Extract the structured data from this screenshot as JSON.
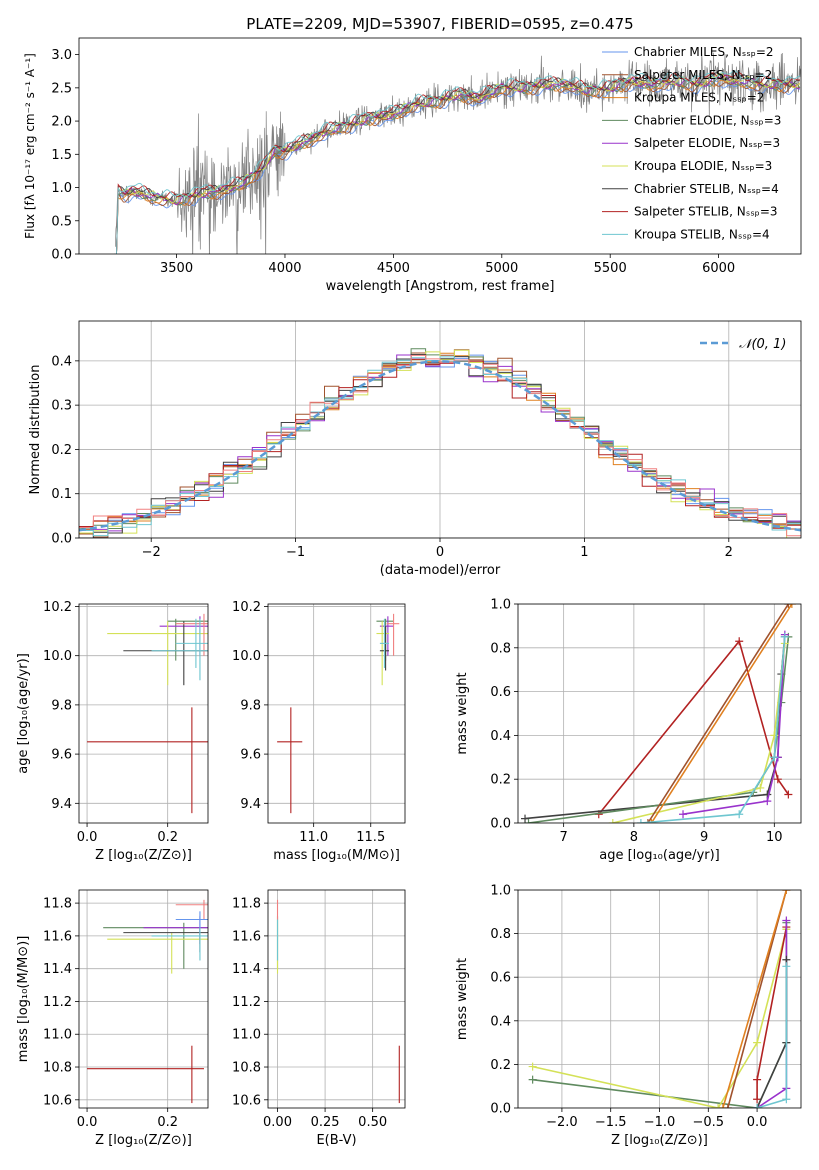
{
  "chart_data": [
    {
      "type": "line",
      "id": "spectrum",
      "title": "PLATE=2209, MJD=53907, FIBERID=0595, z=0.475",
      "xlabel": "wavelength [Angstrom, rest frame]",
      "ylabel": "Flux [fλ 10⁻¹⁷ erg cm⁻² s⁻¹ A⁻¹]",
      "xlim": [
        3050,
        6380
      ],
      "ylim": [
        0,
        3.25
      ],
      "xticks": [
        "3500",
        "4000",
        "4500",
        "5000",
        "5500",
        "6000"
      ],
      "yticks": [
        "0.0",
        "0.5",
        "1.0",
        "1.5",
        "2.0",
        "2.5",
        "3.0"
      ],
      "grid": false,
      "legend_position": "top-right",
      "data_color": "#808080",
      "model_x": [
        3215,
        3230,
        3260,
        3300,
        3400,
        3500,
        3600,
        3700,
        3800,
        3900,
        3950,
        4000,
        4100,
        4200,
        4300,
        4400,
        4500,
        4600,
        4700,
        4800,
        4900,
        5000,
        5100,
        5200,
        5300,
        5400,
        5500,
        5600,
        5700,
        5800,
        5900,
        6000,
        6100,
        6200
      ],
      "model_y": [
        0.0,
        0.95,
        0.9,
        0.95,
        0.85,
        0.8,
        0.9,
        0.95,
        1.05,
        1.3,
        1.55,
        1.55,
        1.7,
        1.85,
        1.95,
        2.05,
        2.1,
        2.25,
        2.3,
        2.4,
        2.35,
        2.5,
        2.5,
        2.55,
        2.55,
        2.45,
        2.5,
        2.6,
        2.55,
        2.6,
        2.55,
        2.65,
        2.6,
        2.55
      ],
      "series": [
        {
          "name": "Chabrier MILES, Nₛₛₚ=2",
          "color": "#6495ed"
        },
        {
          "name": "Salpeter MILES, Nₛₛₚ=2",
          "color": "#a0522d"
        },
        {
          "name": "Kroupa MILES, Nₛₛₚ=2",
          "color": "#e08020"
        },
        {
          "name": "Chabrier ELODIE, Nₛₛₚ=3",
          "color": "#5f8a5f"
        },
        {
          "name": "Salpeter ELODIE, Nₛₛₚ=3",
          "color": "#9932cc"
        },
        {
          "name": "Kroupa ELODIE, Nₛₛₚ=3",
          "color": "#d4e157"
        },
        {
          "name": "Chabrier STELIB, Nₛₛₚ=4",
          "color": "#404040"
        },
        {
          "name": "Salpeter STELIB, Nₛₛₚ=3",
          "color": "#b22222"
        },
        {
          "name": "Kroupa STELIB, Nₛₛₚ=4",
          "color": "#6ec6d0"
        }
      ]
    },
    {
      "type": "line",
      "id": "residuals",
      "xlabel": "(data-model)/error",
      "ylabel": "Normed distribution",
      "xlim": [
        -2.5,
        2.5
      ],
      "ylim": [
        0,
        0.49
      ],
      "xticks": [
        "−2",
        "−1",
        "0",
        "1",
        "2"
      ],
      "yticks": [
        "0.0",
        "0.1",
        "0.2",
        "0.3",
        "0.4"
      ],
      "grid": true,
      "legend_position": "top-right",
      "reference": {
        "name": "𝒩(0, 1)",
        "mean": 0,
        "sigma": 1,
        "color": "#5b9bd5"
      },
      "bin_width": 0.1,
      "hist_colors": [
        "#6495ed",
        "#a0522d",
        "#e08020",
        "#5f8a5f",
        "#9932cc",
        "#d4e157",
        "#404040",
        "#b22222",
        "#6ec6d0",
        "#f08080"
      ]
    },
    {
      "type": "scatter",
      "id": "age-vs-z",
      "xlabel": "Z [log₁₀(Z/Z⊙)]",
      "ylabel": "age  [log₁₀(age/yr)]",
      "xlim": [
        -0.02,
        0.3
      ],
      "ylim": [
        9.32,
        10.21
      ],
      "xticks": [
        "0.0",
        "0.2"
      ],
      "yticks": [
        "9.4",
        "9.6",
        "9.8",
        "10.0",
        "10.2"
      ],
      "grid": true,
      "points": [
        {
          "x": 0.22,
          "y": 10.14,
          "xerr": [
            0.2,
            0.3
          ],
          "yerr": [
            9.98,
            10.15
          ],
          "color": "#5f8a5f"
        },
        {
          "x": 0.28,
          "y": 10.12,
          "xerr": [
            0.18,
            0.3
          ],
          "yerr": [
            10.0,
            10.16
          ],
          "color": "#9932cc"
        },
        {
          "x": 0.2,
          "y": 10.09,
          "xerr": [
            0.05,
            0.3
          ],
          "yerr": [
            9.88,
            10.14
          ],
          "color": "#d4e157"
        },
        {
          "x": 0.24,
          "y": 10.02,
          "xerr": [
            0.09,
            0.3
          ],
          "yerr": [
            9.88,
            10.14
          ],
          "color": "#404040"
        },
        {
          "x": 0.29,
          "y": 10.13,
          "xerr": [
            0.22,
            0.3
          ],
          "yerr": [
            10.0,
            10.17
          ],
          "color": "#f08080"
        },
        {
          "x": 0.27,
          "y": 10.05,
          "xerr": [
            0.22,
            0.3
          ],
          "yerr": [
            9.95,
            10.15
          ],
          "color": "#6ec6d0"
        },
        {
          "x": 0.28,
          "y": 10.02,
          "xerr": [
            0.16,
            0.3
          ],
          "yerr": [
            9.9,
            10.15
          ],
          "color": "#6ec6d0"
        },
        {
          "x": 0.26,
          "y": 9.65,
          "xerr": [
            0.0,
            0.3
          ],
          "yerr": [
            9.36,
            9.79
          ],
          "color": "#b22222"
        }
      ]
    },
    {
      "type": "scatter",
      "id": "age-vs-mass",
      "xlabel": "mass [log₁₀(M/M⊙)]",
      "ylabel": "",
      "xlim": [
        10.6,
        11.8
      ],
      "ylim": [
        9.32,
        10.21
      ],
      "xticks": [
        "11.0",
        "11.5"
      ],
      "yticks": [
        "9.4",
        "9.6",
        "9.8",
        "10.0",
        "10.2"
      ],
      "grid": true,
      "points": [
        {
          "x": 11.63,
          "y": 10.14,
          "xerr": [
            11.55,
            11.7
          ],
          "yerr": [
            9.98,
            10.15
          ],
          "color": "#5f8a5f"
        },
        {
          "x": 11.65,
          "y": 10.12,
          "xerr": [
            11.58,
            11.7
          ],
          "yerr": [
            10.0,
            10.16
          ],
          "color": "#9932cc"
        },
        {
          "x": 11.6,
          "y": 10.09,
          "xerr": [
            11.55,
            11.66
          ],
          "yerr": [
            9.88,
            10.14
          ],
          "color": "#d4e157"
        },
        {
          "x": 11.63,
          "y": 10.02,
          "xerr": [
            11.58,
            11.66
          ],
          "yerr": [
            9.94,
            10.12
          ],
          "color": "#404040"
        },
        {
          "x": 11.7,
          "y": 10.13,
          "xerr": [
            11.64,
            11.75
          ],
          "yerr": [
            10.0,
            10.17
          ],
          "color": "#f08080"
        },
        {
          "x": 11.62,
          "y": 10.05,
          "xerr": [
            11.58,
            11.66
          ],
          "yerr": [
            9.95,
            10.15
          ],
          "color": "#6ec6d0"
        },
        {
          "x": 10.8,
          "y": 9.65,
          "xerr": [
            10.68,
            10.9
          ],
          "yerr": [
            9.36,
            9.79
          ],
          "color": "#b22222"
        }
      ]
    },
    {
      "type": "line",
      "id": "weight-vs-age",
      "xlabel": "age  [log₁₀(age/yr)]",
      "ylabel": "mass weight",
      "xlim": [
        6.35,
        10.38
      ],
      "ylim": [
        0,
        1
      ],
      "xticks": [
        "7",
        "8",
        "9",
        "10"
      ],
      "yticks": [
        "0.0",
        "0.2",
        "0.4",
        "0.6",
        "0.8",
        "1.0"
      ],
      "grid": true,
      "series": [
        {
          "color": "#b22222",
          "x": [
            10.2,
            10.05,
            9.5,
            7.5
          ],
          "y": [
            0.13,
            0.2,
            0.83,
            0.04
          ]
        },
        {
          "color": "#404040",
          "x": [
            6.45,
            9.9,
            10.05,
            10.1,
            10.15
          ],
          "y": [
            0.02,
            0.13,
            0.3,
            0.68,
            0.85
          ]
        },
        {
          "color": "#5f8a5f",
          "x": [
            6.5,
            9.7,
            10.0,
            10.1,
            10.2
          ],
          "y": [
            0.0,
            0.14,
            0.3,
            0.55,
            0.85
          ]
        },
        {
          "color": "#9932cc",
          "x": [
            8.7,
            9.9,
            10.05,
            10.15
          ],
          "y": [
            0.04,
            0.1,
            0.3,
            0.86
          ]
        },
        {
          "color": "#d4e157",
          "x": [
            7.7,
            9.8,
            10.0,
            10.15
          ],
          "y": [
            0.0,
            0.16,
            0.4,
            0.82
          ]
        },
        {
          "color": "#a0522d",
          "x": [
            8.2,
            10.2
          ],
          "y": [
            0.0,
            1.0
          ]
        },
        {
          "color": "#e08020",
          "x": [
            8.25,
            10.25
          ],
          "y": [
            0.0,
            1.0
          ]
        },
        {
          "color": "#6ec6d0",
          "x": [
            8.1,
            9.5,
            10.0,
            10.15
          ],
          "y": [
            0.0,
            0.04,
            0.3,
            0.85
          ]
        }
      ]
    },
    {
      "type": "scatter",
      "id": "mass-vs-z",
      "xlabel": "Z [log₁₀(Z/Z⊙)]",
      "ylabel": "mass [log₁₀(M/M⊙)]",
      "xlim": [
        -0.02,
        0.3
      ],
      "ylim": [
        10.55,
        11.88
      ],
      "xticks": [
        "0.0",
        "0.2"
      ],
      "yticks": [
        "10.6",
        "10.8",
        "11.0",
        "11.2",
        "11.4",
        "11.6",
        "11.8"
      ],
      "grid": true,
      "points": [
        {
          "x": 0.24,
          "y": 11.65,
          "xerr": [
            0.04,
            0.3
          ],
          "yerr": [
            11.4,
            11.68
          ],
          "color": "#5f8a5f"
        },
        {
          "x": 0.28,
          "y": 11.65,
          "xerr": [
            0.14,
            0.3
          ],
          "yerr": [
            11.55,
            11.72
          ],
          "color": "#9932cc"
        },
        {
          "x": 0.21,
          "y": 11.58,
          "xerr": [
            0.05,
            0.3
          ],
          "yerr": [
            11.37,
            11.62
          ],
          "color": "#d4e157"
        },
        {
          "x": 0.28,
          "y": 11.62,
          "xerr": [
            0.09,
            0.3
          ],
          "yerr": [
            11.5,
            11.65
          ],
          "color": "#404040"
        },
        {
          "x": 0.29,
          "y": 11.79,
          "xerr": [
            0.22,
            0.3
          ],
          "yerr": [
            11.7,
            11.82
          ],
          "color": "#f08080"
        },
        {
          "x": 0.28,
          "y": 11.7,
          "xerr": [
            0.22,
            0.3
          ],
          "yerr": [
            11.6,
            11.75
          ],
          "color": "#6495ed"
        },
        {
          "x": 0.28,
          "y": 11.6,
          "xerr": [
            0.16,
            0.3
          ],
          "yerr": [
            11.45,
            11.65
          ],
          "color": "#6ec6d0"
        },
        {
          "x": 0.26,
          "y": 10.79,
          "xerr": [
            0.0,
            0.29
          ],
          "yerr": [
            10.58,
            10.93
          ],
          "color": "#b22222"
        }
      ]
    },
    {
      "type": "scatter",
      "id": "mass-vs-ebv",
      "xlabel": "E(B-V)",
      "ylabel": "",
      "xlim": [
        -0.05,
        0.67
      ],
      "ylim": [
        10.55,
        11.88
      ],
      "xticks": [
        "0.00",
        "0.25",
        "0.50"
      ],
      "yticks": [
        "10.6",
        "10.8",
        "11.0",
        "11.2",
        "11.4",
        "11.6",
        "11.8"
      ],
      "grid": true,
      "points": [
        {
          "x": 0.0,
          "y": 11.62,
          "xerr": [
            0.0,
            0.0
          ],
          "yerr": [
            11.4,
            11.72
          ],
          "color": "#5f8a5f"
        },
        {
          "x": 0.0,
          "y": 11.6,
          "xerr": [
            0.0,
            0.0
          ],
          "yerr": [
            11.37,
            11.7
          ],
          "color": "#d4e157"
        },
        {
          "x": 0.0,
          "y": 11.78,
          "xerr": [
            0.0,
            0.0
          ],
          "yerr": [
            11.7,
            11.82
          ],
          "color": "#f08080"
        },
        {
          "x": 0.0,
          "y": 11.6,
          "xerr": [
            0.0,
            0.0
          ],
          "yerr": [
            11.45,
            11.7
          ],
          "color": "#6ec6d0"
        },
        {
          "x": 0.64,
          "y": 10.79,
          "xerr": [
            0.64,
            0.64
          ],
          "yerr": [
            10.58,
            10.93
          ],
          "color": "#b22222"
        }
      ]
    },
    {
      "type": "line",
      "id": "weight-vs-z",
      "xlabel": "Z [log₁₀(Z/Z⊙)]",
      "ylabel": "mass weight",
      "xlim": [
        -2.45,
        0.45
      ],
      "ylim": [
        0,
        1
      ],
      "xticks": [
        "−2.0",
        "−1.5",
        "−1.0",
        "−0.5",
        "0.0"
      ],
      "yticks": [
        "0.0",
        "0.2",
        "0.4",
        "0.6",
        "0.8",
        "1.0"
      ],
      "grid": true,
      "series": [
        {
          "color": "#5f8a5f",
          "x": [
            -2.3,
            0.0,
            0.3,
            0.3
          ],
          "y": [
            0.13,
            0.0,
            0.3,
            0.85
          ]
        },
        {
          "color": "#d4e157",
          "x": [
            -2.3,
            -0.4,
            0.0,
            0.3
          ],
          "y": [
            0.19,
            0.0,
            0.3,
            0.82
          ]
        },
        {
          "color": "#b22222",
          "x": [
            0.0,
            0.0,
            0.3
          ],
          "y": [
            0.04,
            0.13,
            0.83
          ]
        },
        {
          "color": "#9932cc",
          "x": [
            0.0,
            0.3,
            0.3
          ],
          "y": [
            0.0,
            0.09,
            0.86
          ]
        },
        {
          "color": "#404040",
          "x": [
            0.0,
            0.3,
            0.3
          ],
          "y": [
            0.0,
            0.3,
            0.68
          ]
        },
        {
          "color": "#a0522d",
          "x": [
            -0.3,
            0.3
          ],
          "y": [
            0.0,
            1.0
          ]
        },
        {
          "color": "#e08020",
          "x": [
            -0.35,
            0.3
          ],
          "y": [
            0.0,
            1.0
          ]
        },
        {
          "color": "#6ec6d0",
          "x": [
            0.0,
            0.3,
            0.3
          ],
          "y": [
            0.0,
            0.04,
            0.65
          ]
        }
      ]
    }
  ]
}
